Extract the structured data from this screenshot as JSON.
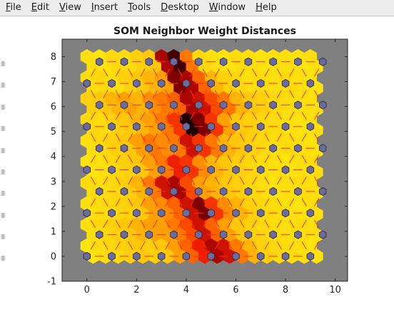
{
  "menu": {
    "items": [
      {
        "label": "File",
        "key": "F",
        "rest": "ile"
      },
      {
        "label": "Edit",
        "key": "E",
        "rest": "dit"
      },
      {
        "label": "View",
        "key": "V",
        "rest": "iew"
      },
      {
        "label": "Insert",
        "key": "I",
        "rest": "nsert"
      },
      {
        "label": "Tools",
        "key": "T",
        "rest": "ools"
      },
      {
        "label": "Desktop",
        "key": "D",
        "rest": "esktop"
      },
      {
        "label": "Window",
        "key": "W",
        "rest": "indow"
      },
      {
        "label": "Help",
        "key": "H",
        "rest": "elp"
      }
    ]
  },
  "colors": {
    "axes_background": "#808080",
    "neuron_fill": "#6b6b9e",
    "neuron_edge": "#2c2c4a",
    "connection_line": "#ff2a00",
    "low_distance": "#ffff14",
    "high_distance": "#000000"
  },
  "chart_data": {
    "type": "heatmap",
    "title": "SOM Neighbor Weight Distances",
    "xlabel": "",
    "ylabel": "",
    "xlim": [
      -1,
      10.5
    ],
    "ylim": [
      -1,
      8.7
    ],
    "xticks": [
      "0",
      "2",
      "4",
      "6",
      "8",
      "10"
    ],
    "yticks": [
      "-1",
      "0",
      "1",
      "2",
      "3",
      "4",
      "5",
      "6",
      "7",
      "8"
    ],
    "grid": false,
    "topology": "hexagonal",
    "grid_size": [
      10,
      10
    ],
    "distance_colormap": "yellow-red-black",
    "neighbor_distances": [
      [
        0.2,
        0.18,
        0.25,
        0.22,
        0.3,
        0.35,
        0.85,
        0.95,
        0.55,
        0.25,
        0.2,
        0.18,
        0.22,
        0.2,
        0.18,
        0.2,
        0.2,
        0.18,
        0.2
      ],
      [
        0.22,
        0.25,
        0.2,
        0.3,
        0.35,
        0.4,
        0.45,
        0.9,
        0.85,
        0.6,
        0.4,
        0.3,
        0.25,
        0.2,
        0.22,
        0.2,
        0.25,
        0.2,
        0.18
      ],
      [
        0.3,
        0.35,
        0.4,
        0.45,
        0.4,
        0.5,
        0.55,
        0.6,
        0.85,
        0.8,
        0.65,
        0.55,
        0.4,
        0.35,
        0.3,
        0.25,
        0.22,
        0.2,
        0.2
      ],
      [
        0.25,
        0.22,
        0.3,
        0.35,
        0.4,
        0.45,
        0.55,
        0.7,
        0.98,
        0.9,
        0.7,
        0.45,
        0.35,
        0.3,
        0.25,
        0.22,
        0.2,
        0.18,
        0.2
      ],
      [
        0.2,
        0.25,
        0.3,
        0.35,
        0.45,
        0.55,
        0.5,
        0.55,
        0.8,
        0.7,
        0.55,
        0.4,
        0.35,
        0.3,
        0.25,
        0.2,
        0.22,
        0.2,
        0.18
      ],
      [
        0.18,
        0.2,
        0.25,
        0.3,
        0.35,
        0.45,
        0.55,
        0.75,
        0.7,
        0.5,
        0.4,
        0.35,
        0.3,
        0.25,
        0.2,
        0.2,
        0.18,
        0.2,
        0.22
      ],
      [
        0.22,
        0.2,
        0.25,
        0.3,
        0.4,
        0.55,
        0.8,
        0.85,
        0.65,
        0.45,
        0.4,
        0.35,
        0.3,
        0.25,
        0.2,
        0.18,
        0.2,
        0.22,
        0.2
      ],
      [
        0.2,
        0.22,
        0.25,
        0.28,
        0.35,
        0.45,
        0.5,
        0.6,
        0.8,
        0.9,
        0.7,
        0.5,
        0.4,
        0.3,
        0.25,
        0.22,
        0.2,
        0.18,
        0.2
      ],
      [
        0.2,
        0.25,
        0.3,
        0.35,
        0.4,
        0.45,
        0.45,
        0.55,
        0.65,
        0.8,
        0.6,
        0.45,
        0.35,
        0.3,
        0.25,
        0.22,
        0.2,
        0.22,
        0.2
      ],
      [
        0.18,
        0.22,
        0.25,
        0.3,
        0.35,
        0.3,
        0.35,
        0.45,
        0.6,
        0.75,
        0.85,
        0.8,
        0.55,
        0.4,
        0.3,
        0.25,
        0.22,
        0.2,
        0.18
      ]
    ]
  }
}
